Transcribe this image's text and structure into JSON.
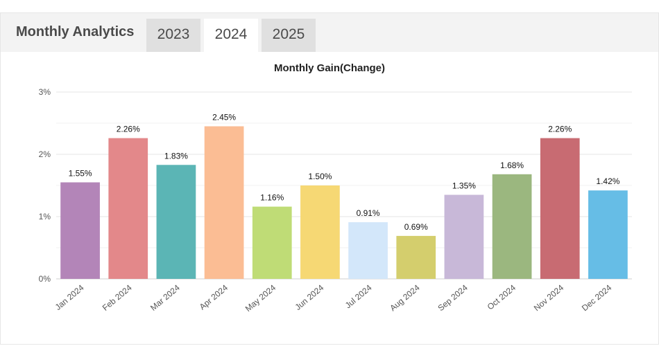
{
  "header": {
    "title": "Monthly Analytics",
    "tabs": [
      {
        "label": "2023",
        "active": false
      },
      {
        "label": "2024",
        "active": true
      },
      {
        "label": "2025",
        "active": false
      }
    ]
  },
  "chart_data": {
    "type": "bar",
    "title": "Monthly Gain(Change)",
    "xlabel": "",
    "ylabel": "",
    "ylim": [
      0,
      3
    ],
    "y_ticks": [
      0,
      1,
      2,
      3
    ],
    "y_tick_labels": [
      "0%",
      "1%",
      "2%",
      "3%"
    ],
    "grid": true,
    "legend": "none",
    "categories": [
      "Jan 2024",
      "Feb 2024",
      "Mar 2024",
      "Apr 2024",
      "May 2024",
      "Jun 2024",
      "Jul 2024",
      "Aug 2024",
      "Sep 2024",
      "Oct 2024",
      "Nov 2024",
      "Dec 2024"
    ],
    "values": [
      1.55,
      2.26,
      1.83,
      2.45,
      1.16,
      1.5,
      0.91,
      0.69,
      1.35,
      1.68,
      2.26,
      1.42
    ],
    "value_labels": [
      "1.55%",
      "2.26%",
      "1.83%",
      "2.45%",
      "1.16%",
      "1.50%",
      "0.91%",
      "0.69%",
      "1.35%",
      "1.68%",
      "2.26%",
      "1.42%"
    ],
    "colors": [
      "#b385b8",
      "#e3888a",
      "#5bb5b5",
      "#fbbd94",
      "#bfdc76",
      "#f6d874",
      "#d3e7fa",
      "#d4ce6d",
      "#c8b8d8",
      "#9bb77f",
      "#c86b72",
      "#66bde6"
    ]
  }
}
